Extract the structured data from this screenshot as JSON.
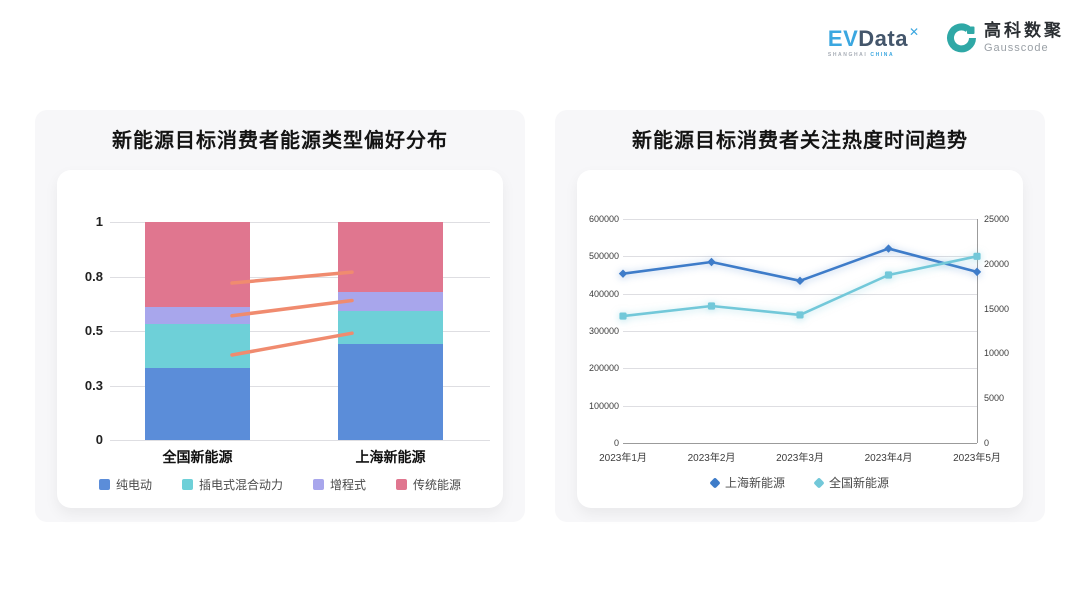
{
  "brand": {
    "evdata": {
      "ev": "EV",
      "data": "Data",
      "sup": "✕",
      "sub_left": "SHANGHAI",
      "sub_right": "CHINA"
    },
    "gausscode": {
      "cn": "高科数聚",
      "en": "Gausscode",
      "icon_color": "#2fa8a6"
    }
  },
  "chart_data": [
    {
      "type": "bar",
      "stacked": true,
      "title": "新能源目标消费者能源类型偏好分布",
      "categories": [
        "全国新能源",
        "上海新能源"
      ],
      "series": [
        {
          "name": "纯电动",
          "color": "#5b8dd9",
          "values": [
            0.33,
            0.44
          ]
        },
        {
          "name": "插电式混合动力",
          "color": "#6ed0d8",
          "values": [
            0.2,
            0.15
          ]
        },
        {
          "name": "增程式",
          "color": "#a8a6ec",
          "values": [
            0.08,
            0.09
          ]
        },
        {
          "name": "传统能源",
          "color": "#e0768f",
          "values": [
            0.39,
            0.32
          ]
        }
      ],
      "ylim": [
        0,
        1
      ],
      "y_tick_labels": [
        "0",
        "0.3",
        "0.5",
        "0.8",
        "1"
      ],
      "grid": true,
      "legend_position": "bottom",
      "connectors": {
        "color": "#f08b6f",
        "lines": [
          [
            0.39,
            0.49
          ],
          [
            0.57,
            0.64
          ],
          [
            0.72,
            0.77
          ]
        ]
      }
    },
    {
      "type": "line",
      "title": "新能源目标消费者关注热度时间趋势",
      "x": [
        "2023年1月",
        "2023年2月",
        "2023年3月",
        "2023年4月",
        "2023年5月"
      ],
      "series": [
        {
          "name": "上海新能源",
          "color": "#3e7cc9",
          "axis": "right",
          "marker": "diamond",
          "values": [
            18900,
            20200,
            18100,
            21700,
            19100
          ]
        },
        {
          "name": "全国新能源",
          "color": "#72c8d9",
          "axis": "left",
          "marker": "square",
          "values": [
            340000,
            367000,
            343000,
            450000,
            500000
          ]
        }
      ],
      "left_axis": {
        "max": 600000,
        "ticks": [
          0,
          100000,
          200000,
          300000,
          400000,
          500000,
          600000
        ]
      },
      "right_axis": {
        "max": 25000,
        "ticks": [
          0,
          5000,
          10000,
          15000,
          20000,
          25000
        ]
      },
      "grid": true,
      "legend_position": "bottom"
    }
  ]
}
